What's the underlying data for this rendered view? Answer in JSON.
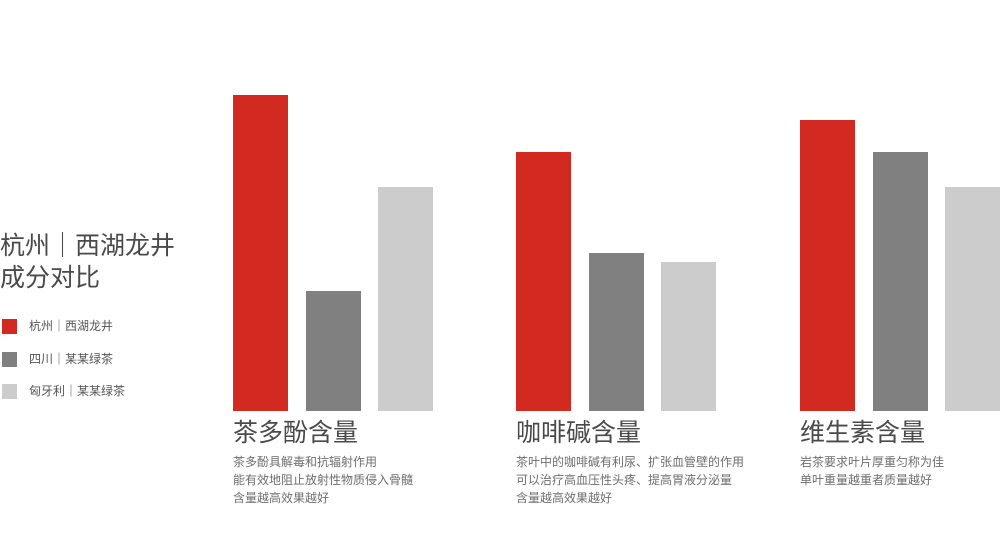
{
  "chart_data": {
    "type": "bar",
    "title_lines": [
      "杭州｜西湖龙井",
      "成分对比"
    ],
    "categories": [
      "茶多酚含量",
      "咖啡碱含量",
      "维生素含量"
    ],
    "descriptions": [
      [
        "茶多酚具解毒和抗辐射作用",
        "能有效地阻止放射性物质侵入骨髓",
        "含量越高效果越好"
      ],
      [
        "茶叶中的咖啡碱有利尿、扩张血管壁的作用",
        "可以治疗高血压性头疼、提高胃液分泌量",
        "含量越高效果越好"
      ],
      [
        "岩茶要求叶片厚重匀称为佳",
        "单叶重量越重者质量越好"
      ]
    ],
    "series": [
      {
        "name": "杭州｜西湖龙井",
        "color": "#d22a20",
        "values": [
          100,
          82,
          92
        ]
      },
      {
        "name": "四川｜某某绿茶",
        "color": "#808080",
        "values": [
          38,
          50,
          82
        ]
      },
      {
        "name": "匈牙利｜某某绿茶",
        "color": "#cccccc",
        "values": [
          71,
          47,
          71
        ]
      }
    ],
    "ylim": [
      0,
      100
    ],
    "xlabel": "",
    "ylabel": "",
    "grid": false,
    "legend_position": "left"
  }
}
